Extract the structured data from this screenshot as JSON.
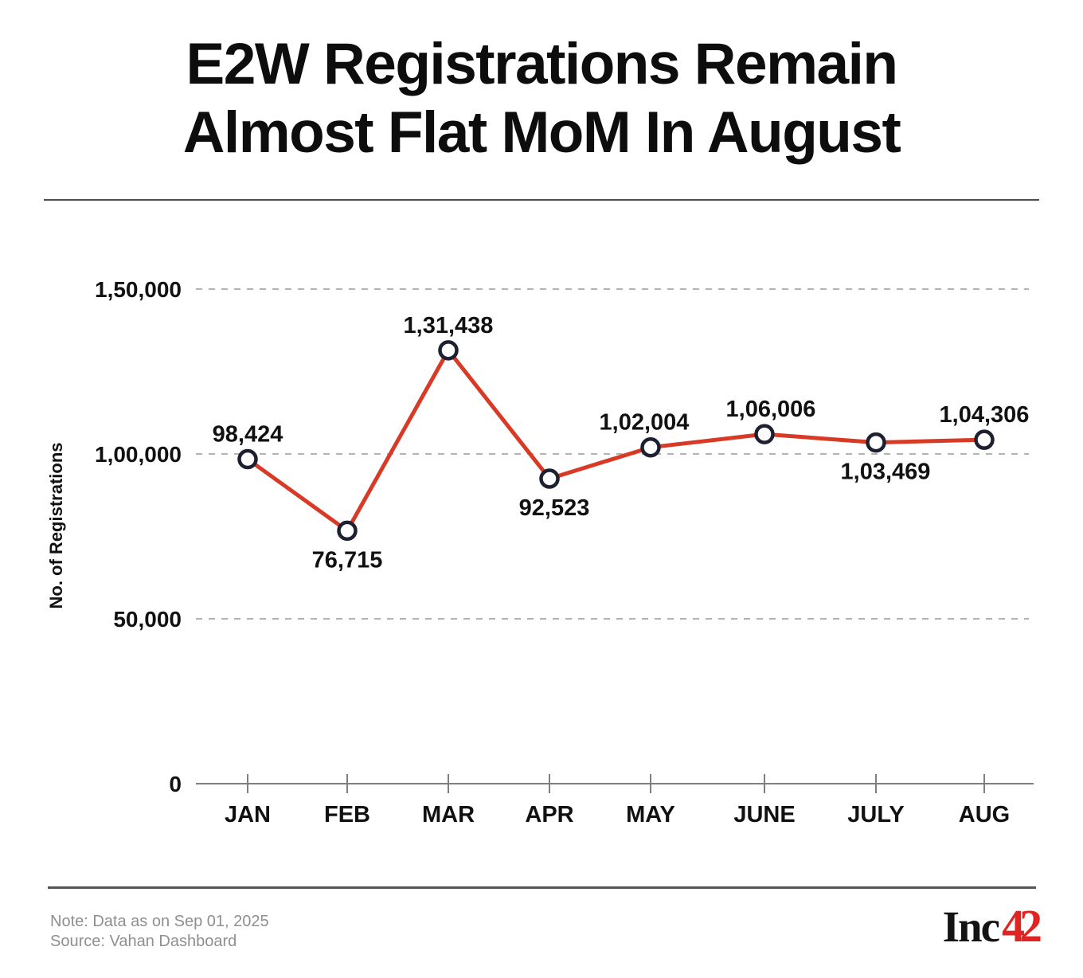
{
  "title": {
    "line1": "E2W Registrations Remain",
    "line2": "Almost Flat MoM In August"
  },
  "chart_data": {
    "type": "line",
    "x": [
      "JAN",
      "FEB",
      "MAR",
      "APR",
      "MAY",
      "JUNE",
      "JULY",
      "AUG"
    ],
    "series": [
      {
        "name": "E2W Registrations",
        "values": [
          98424,
          76715,
          131438,
          92523,
          102004,
          106006,
          103469,
          104306
        ]
      }
    ],
    "point_labels": [
      "98,424",
      "76,715",
      "1,31,438",
      "92,523",
      "1,02,004",
      "1,06,006",
      "1,03,469",
      "1,04,306"
    ],
    "point_label_positions": [
      "above",
      "below",
      "above",
      "below",
      "above",
      "above",
      "below",
      "above"
    ],
    "ylabel": "No. of Registrations",
    "xlabel": "",
    "yticks": [
      {
        "value": 0,
        "label": "0"
      },
      {
        "value": 50000,
        "label": "50,000"
      },
      {
        "value": 100000,
        "label": "1,00,000"
      },
      {
        "value": 150000,
        "label": "1,50,000"
      }
    ],
    "ylim": [
      0,
      150000
    ],
    "grid": "horizontal-dashed",
    "legend": "none",
    "colors": {
      "line": "#d93a26",
      "marker_fill": "#ffffff",
      "marker_stroke": "#1c2030",
      "gridline": "#b3b3b3",
      "axis": "#7f7f7f",
      "text": "#111111"
    }
  },
  "footer": {
    "note": "Note: Data as on Sep 01, 2025",
    "source": "Source: Vahan Dashboard",
    "logo": {
      "black_part": "Inc",
      "red_part": "42",
      "red_color": "#e02421"
    }
  }
}
